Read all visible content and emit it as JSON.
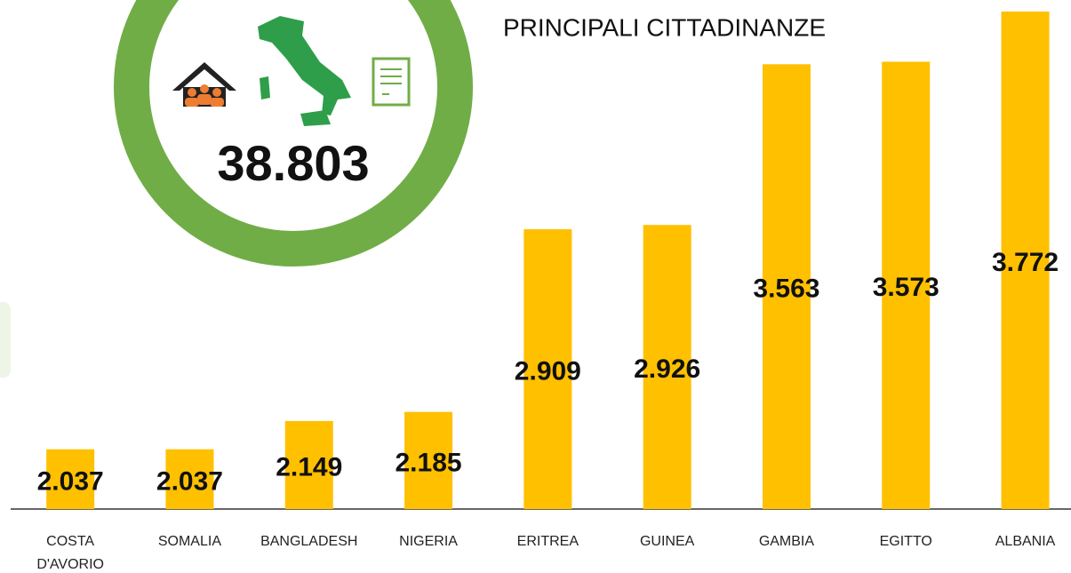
{
  "chart_data": {
    "type": "bar",
    "title": "PRINCIPALI CITTADINANZE",
    "total_label": "38.803",
    "categories": [
      "COSTA D'AVORIO",
      "SOMALIA",
      "BANGLADESH",
      "NIGERIA",
      "ERITREA",
      "GUINEA",
      "GAMBIA",
      "EGITTO",
      "ALBANIA"
    ],
    "values": [
      2037,
      2037,
      2149,
      2185,
      2909,
      2926,
      3563,
      3573,
      3772
    ],
    "value_labels": [
      "2.037",
      "2.037",
      "2.149",
      "2.185",
      "2.909",
      "2.926",
      "3.563",
      "3.573",
      "3.772"
    ],
    "color": "#ffc000",
    "ylim": [
      1800,
      3800
    ]
  }
}
